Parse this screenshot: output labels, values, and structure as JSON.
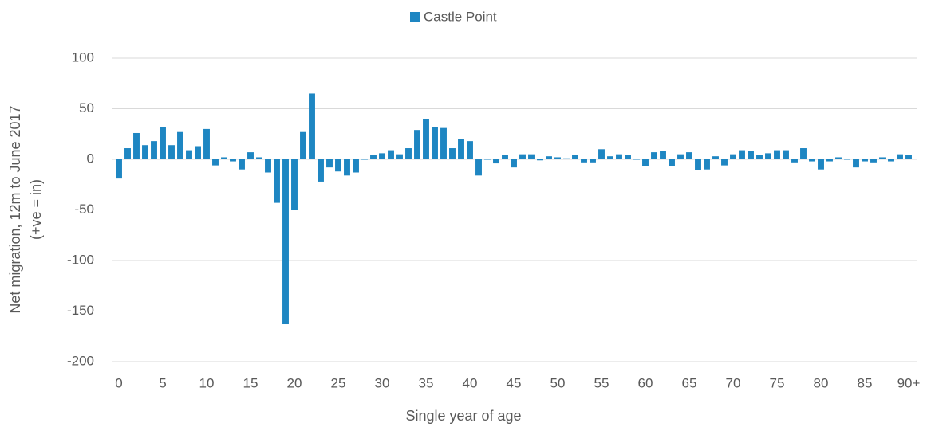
{
  "chart_data": {
    "type": "bar",
    "x_label": "Single year of age",
    "y_label": [
      "Net migration, 12m to June 2017",
      "(+ve = in)"
    ],
    "series": [
      {
        "name": "Castle Point",
        "color": "#1e86c2",
        "values": [
          -19,
          11,
          26,
          14,
          18,
          32,
          14,
          27,
          9,
          13,
          30,
          -6,
          2,
          -2,
          -10,
          7,
          2,
          -13,
          -43,
          -163,
          -50,
          27,
          65,
          -22,
          -8,
          -12,
          -16,
          -13,
          0,
          4,
          6,
          9,
          5,
          11,
          29,
          40,
          32,
          31,
          11,
          20,
          18,
          -16,
          0,
          -4,
          4,
          -8,
          5,
          5,
          -1,
          3,
          2,
          1,
          4,
          -3,
          -3,
          10,
          3,
          5,
          4,
          0,
          -7,
          7,
          8,
          -7,
          5,
          7,
          -11,
          -10,
          3,
          -6,
          5,
          9,
          8,
          4,
          6,
          9,
          9,
          -3,
          11,
          -2,
          -10,
          -2,
          2,
          0,
          -8,
          -2,
          -3,
          2,
          -2,
          5,
          4
        ]
      }
    ],
    "categories": [
      "0",
      null,
      null,
      null,
      null,
      "5",
      null,
      null,
      null,
      null,
      "10",
      null,
      null,
      null,
      null,
      "15",
      null,
      null,
      null,
      null,
      "20",
      null,
      null,
      null,
      null,
      "25",
      null,
      null,
      null,
      null,
      "30",
      null,
      null,
      null,
      null,
      "35",
      null,
      null,
      null,
      null,
      "40",
      null,
      null,
      null,
      null,
      "45",
      null,
      null,
      null,
      null,
      "50",
      null,
      null,
      null,
      null,
      "55",
      null,
      null,
      null,
      null,
      "60",
      null,
      null,
      null,
      null,
      "65",
      null,
      null,
      null,
      null,
      "70",
      null,
      null,
      null,
      null,
      "75",
      null,
      null,
      null,
      null,
      "80",
      null,
      null,
      null,
      null,
      "85",
      null,
      null,
      null,
      null,
      "90+"
    ],
    "ylim": [
      -200,
      100
    ],
    "yticks": [
      -200,
      -150,
      -100,
      -50,
      0,
      50,
      100
    ],
    "grid": true,
    "legend": "top"
  }
}
